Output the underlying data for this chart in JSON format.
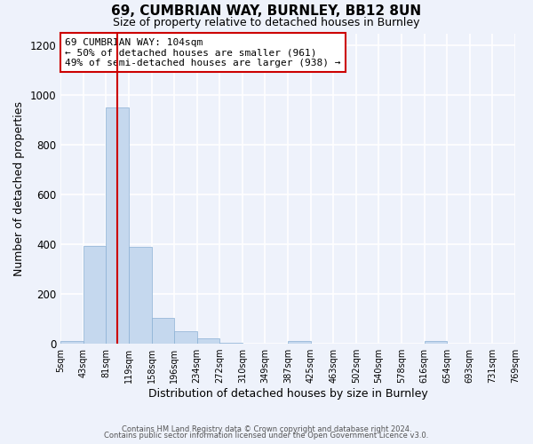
{
  "title": "69, CUMBRIAN WAY, BURNLEY, BB12 8UN",
  "subtitle": "Size of property relative to detached houses in Burnley",
  "xlabel": "Distribution of detached houses by size in Burnley",
  "ylabel": "Number of detached properties",
  "bar_color": "#c5d8ee",
  "bar_edge_color": "#8ab0d4",
  "background_color": "#eef2fb",
  "grid_color": "#ffffff",
  "bin_labels": [
    "5sqm",
    "43sqm",
    "81sqm",
    "119sqm",
    "158sqm",
    "196sqm",
    "234sqm",
    "272sqm",
    "310sqm",
    "349sqm",
    "387sqm",
    "425sqm",
    "463sqm",
    "502sqm",
    "540sqm",
    "578sqm",
    "616sqm",
    "654sqm",
    "693sqm",
    "731sqm",
    "769sqm"
  ],
  "bar_heights": [
    10,
    395,
    950,
    390,
    105,
    52,
    22,
    5,
    0,
    0,
    10,
    0,
    0,
    0,
    0,
    0,
    10,
    0,
    0,
    0
  ],
  "vline_index": 2.5,
  "vline_color": "#cc0000",
  "annotation_box_text": "69 CUMBRIAN WAY: 104sqm\n← 50% of detached houses are smaller (961)\n49% of semi-detached houses are larger (938) →",
  "ylim": [
    0,
    1250
  ],
  "yticks": [
    0,
    200,
    400,
    600,
    800,
    1000,
    1200
  ],
  "footer_line1": "Contains HM Land Registry data © Crown copyright and database right 2024.",
  "footer_line2": "Contains public sector information licensed under the Open Government Licence v3.0."
}
